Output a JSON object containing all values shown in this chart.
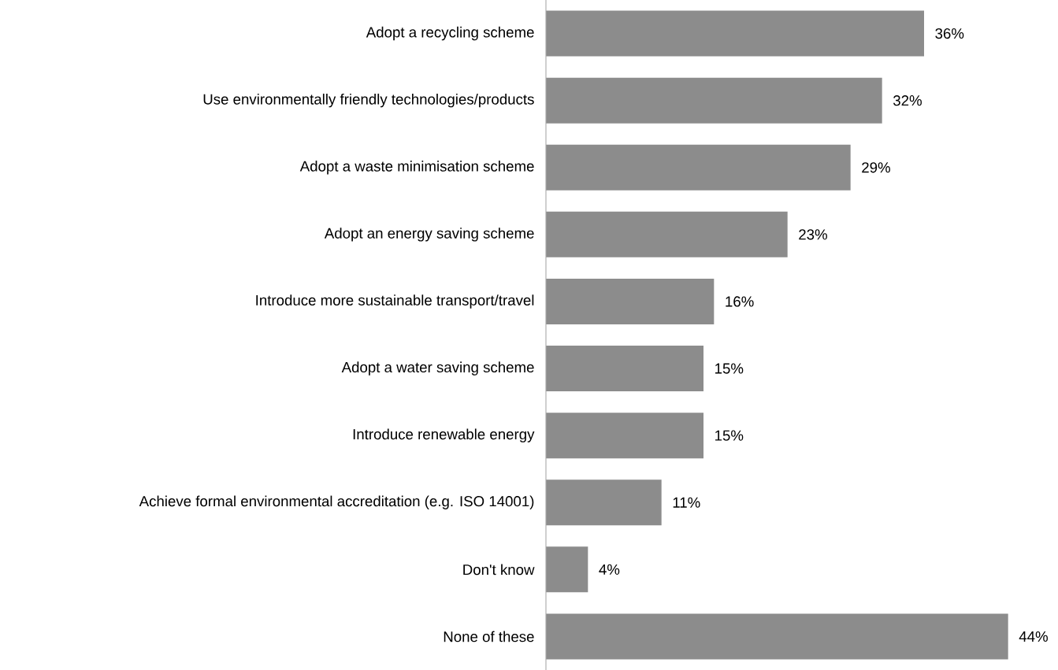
{
  "chart_data": {
    "type": "bar",
    "orientation": "horizontal",
    "color": "#8c8c8c",
    "categories": [
      "Adopt a recycling scheme",
      "Use environmentally friendly technologies/products",
      "Adopt a waste minimisation scheme",
      "Adopt an energy saving scheme",
      "Introduce more sustainable transport/travel",
      "Adopt a water saving scheme",
      "Introduce renewable energy",
      "Achieve formal environmental accreditation (e.g. ISO 14001)",
      "Don't know",
      "None of these"
    ],
    "values": [
      36,
      32,
      29,
      23,
      16,
      15,
      15,
      11,
      4,
      44
    ],
    "value_labels": [
      "36%",
      "32%",
      "29%",
      "23%",
      "16%",
      "15%",
      "15%",
      "11%",
      "4%",
      "44%"
    ]
  }
}
